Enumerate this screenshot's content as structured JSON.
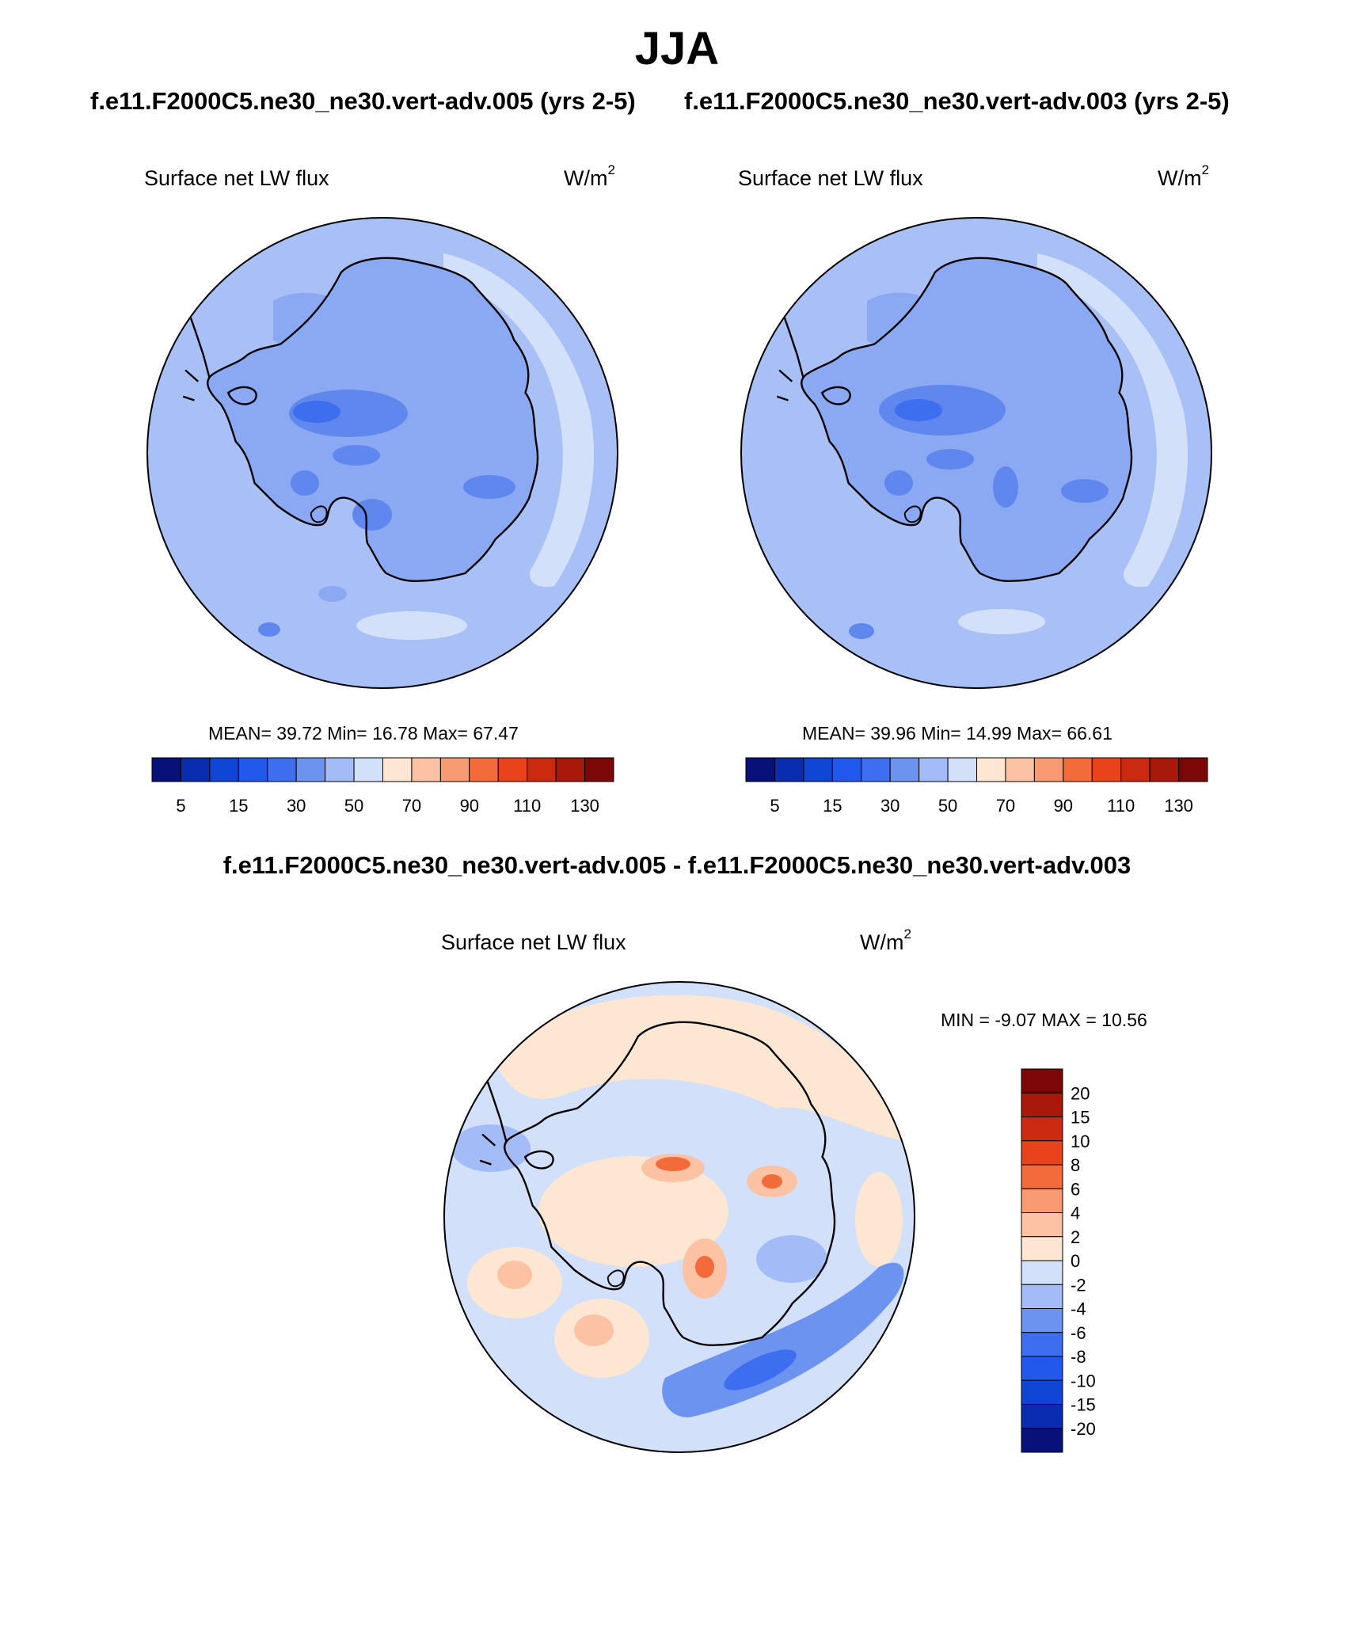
{
  "header": {
    "season": "JJA",
    "case_a": "f.e11.F2000C5.ne30_ne30.vert-adv.005 (yrs 2-5)",
    "case_b": "f.e11.F2000C5.ne30_ne30.vert-adv.003 (yrs 2-5)",
    "difference": "f.e11.F2000C5.ne30_ne30.vert-adv.005 - f.e11.F2000C5.ne30_ne30.vert-adv.003"
  },
  "variable": {
    "name": "Surface net LW flux",
    "unit_base": "W/m",
    "unit_exp": "2"
  },
  "panels": {
    "left": {
      "stats": "MEAN=  39.72  Min=  16.78  Max=  67.47"
    },
    "right": {
      "stats": "MEAN=  39.96  Min=  14.99  Max=  66.61"
    },
    "diff": {
      "stats": "MIN =  -9.07 MAX =  10.56"
    }
  },
  "colorbars": {
    "main": {
      "labels": [
        "5",
        "15",
        "30",
        "50",
        "70",
        "90",
        "110",
        "130"
      ],
      "colors": [
        "#08117a",
        "#0a2cb0",
        "#0e45d4",
        "#2059ec",
        "#3d6ef0",
        "#6d93f0",
        "#a3bbf6",
        "#d2e0fa",
        "#fde7d3",
        "#fbc3a3",
        "#f79a72",
        "#f46b3b",
        "#e9431c",
        "#cc2a0e",
        "#a8190a",
        "#7c0707"
      ]
    },
    "diff": {
      "labels": [
        "20",
        "15",
        "10",
        "8",
        "6",
        "4",
        "2",
        "0",
        "-2",
        "-4",
        "-6",
        "-8",
        "-10",
        "-15",
        "-20"
      ],
      "colors": [
        "#7c0707",
        "#a8190a",
        "#cc2a0e",
        "#e9431c",
        "#f46b3b",
        "#f79a72",
        "#fbc3a3",
        "#fde7d3",
        "#d2e0fa",
        "#a3bbf6",
        "#6d93f0",
        "#3d6ef0",
        "#2059ec",
        "#0e45d4",
        "#0a2cb0",
        "#08117a"
      ]
    }
  },
  "map_colors": {
    "ocean": "#a8c0f6",
    "light_band": "#d2e0fa",
    "mid": "#8aa9f2",
    "dark": "#5f87ee",
    "darker": "#3d6ef0",
    "diff_base": "#d2e0fa",
    "diff_warm": "#fde7d3",
    "diff_warm2": "#fbc3a3",
    "diff_hot": "#f46b3b",
    "diff_cool": "#a3bbf6",
    "diff_cold": "#6d93f0",
    "diff_colder": "#3d6ef0",
    "coastline": "#000000"
  }
}
